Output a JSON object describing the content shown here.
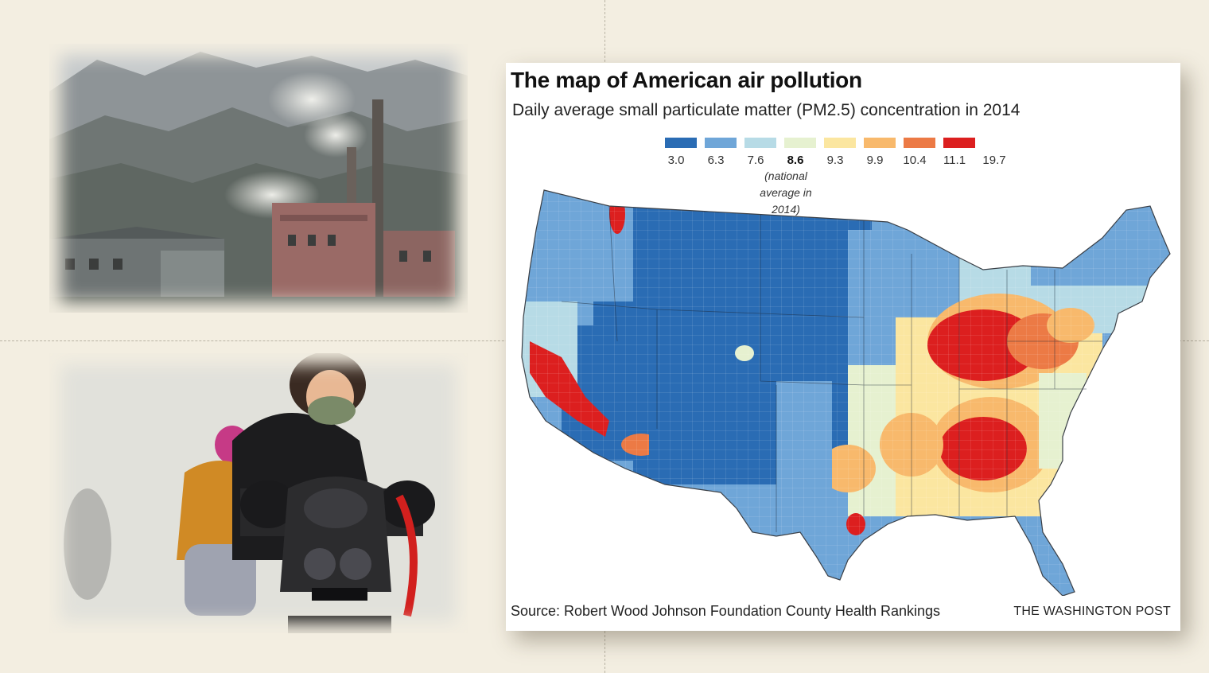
{
  "map": {
    "title": "The map of American air pollution",
    "subtitle": "Daily average small particulate matter (PM2.5) concentration in 2014",
    "legend": {
      "colors": [
        "#2a6cb4",
        "#6fa6d8",
        "#b7dbe6",
        "#e6f1d0",
        "#fbe6a0",
        "#f8b96c",
        "#ec7a45",
        "#dc1f1f"
      ],
      "ticks": [
        "3.0",
        "6.3",
        "7.6",
        "8.6",
        "9.3",
        "9.9",
        "10.4",
        "11.1",
        "19.7"
      ],
      "national_average_note": "(national average in 2014)"
    },
    "source": "Source: Robert Wood Johnson Foundation County Health Rankings",
    "credit": "THE WASHINGTON POST"
  },
  "photos": {
    "factory_icon": "factory-smokestacks-photo",
    "scooter_icon": "masked-scooter-rider-photo"
  }
}
